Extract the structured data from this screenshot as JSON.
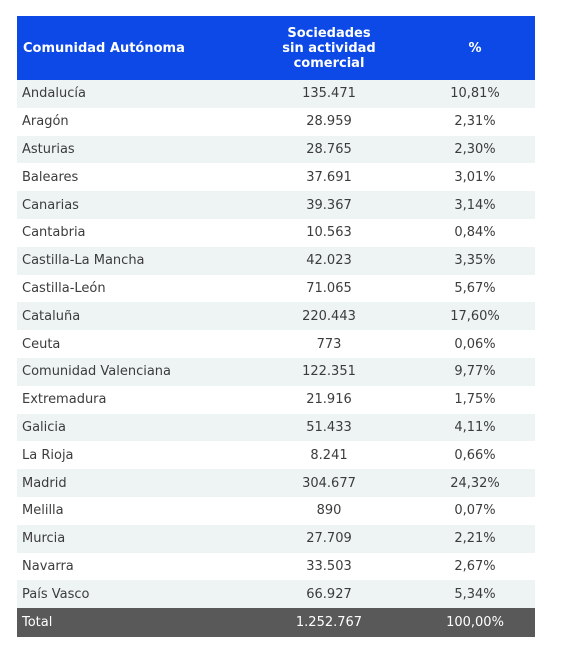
{
  "header": {
    "col1": "Comunidad Autónoma",
    "col2_lines": [
      "Sociedades",
      "sin actividad",
      "comercial"
    ],
    "col3": "%"
  },
  "rows": [
    {
      "name": "Andalucía",
      "value": "135.471",
      "pct": "10,81%"
    },
    {
      "name": "Aragón",
      "value": "28.959",
      "pct": "2,31%"
    },
    {
      "name": "Asturias",
      "value": "28.765",
      "pct": "2,30%"
    },
    {
      "name": "Baleares",
      "value": "37.691",
      "pct": "3,01%"
    },
    {
      "name": "Canarias",
      "value": "39.367",
      "pct": "3,14%"
    },
    {
      "name": "Cantabria",
      "value": "10.563",
      "pct": "0,84%"
    },
    {
      "name": "Castilla-La Mancha",
      "value": "42.023",
      "pct": "3,35%"
    },
    {
      "name": "Castilla-León",
      "value": "71.065",
      "pct": "5,67%"
    },
    {
      "name": "Cataluña",
      "value": "220.443",
      "pct": "17,60%"
    },
    {
      "name": "Ceuta",
      "value": "773",
      "pct": "0,06%"
    },
    {
      "name": "Comunidad Valenciana",
      "value": "122.351",
      "pct": "9,77%"
    },
    {
      "name": "Extremadura",
      "value": "21.916",
      "pct": "1,75%"
    },
    {
      "name": "Galicia",
      "value": "51.433",
      "pct": "4,11%"
    },
    {
      "name": "La Rioja",
      "value": "8.241",
      "pct": "0,66%"
    },
    {
      "name": "Madrid",
      "value": "304.677",
      "pct": "24,32%"
    },
    {
      "name": "Melilla",
      "value": "890",
      "pct": "0,07%"
    },
    {
      "name": "Murcia",
      "value": "27.709",
      "pct": "2,21%"
    },
    {
      "name": "Navarra",
      "value": "33.503",
      "pct": "2,67%"
    },
    {
      "name": "País Vasco",
      "value": "66.927",
      "pct": "5,34%"
    }
  ],
  "total": {
    "name": "Total",
    "value": "1.252.767",
    "pct": "100,00%"
  },
  "colors": {
    "header_bg": "#0d49e6",
    "row_alt_bg": "#eef3f4",
    "total_bg": "#595959"
  }
}
